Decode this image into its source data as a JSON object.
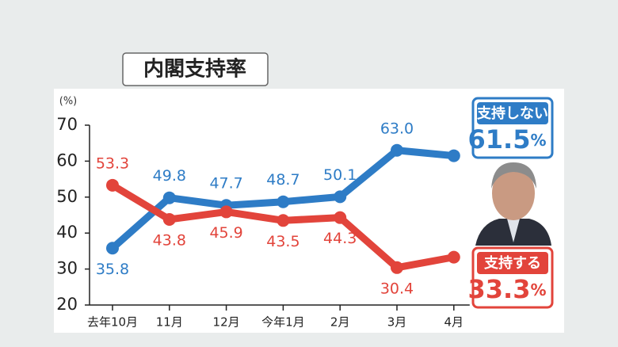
{
  "chart_data": {
    "type": "line",
    "title": "内閣支持率",
    "y_label": "(%)",
    "value_suffix": "%",
    "categories": [
      "去年10月",
      "11月",
      "12月",
      "今年1月",
      "2月",
      "3月",
      "4月"
    ],
    "series": [
      {
        "name": "支持しない",
        "color": "#2e7cc6",
        "values": [
          35.8,
          49.8,
          47.7,
          48.7,
          50.1,
          63.0,
          61.5
        ],
        "value_labels": [
          "35.8",
          "49.8",
          "47.7",
          "48.7",
          "50.1",
          "63.0",
          null
        ]
      },
      {
        "name": "支持する",
        "color": "#e2443b",
        "values": [
          53.3,
          43.8,
          45.9,
          43.5,
          44.3,
          30.4,
          33.3
        ],
        "value_labels": [
          "53.3",
          "43.8",
          "45.9",
          "43.5",
          "44.3",
          "30.4",
          null
        ]
      }
    ],
    "ylim": [
      20,
      70
    ],
    "yticks": [
      20,
      30,
      40,
      50,
      60,
      70
    ]
  }
}
